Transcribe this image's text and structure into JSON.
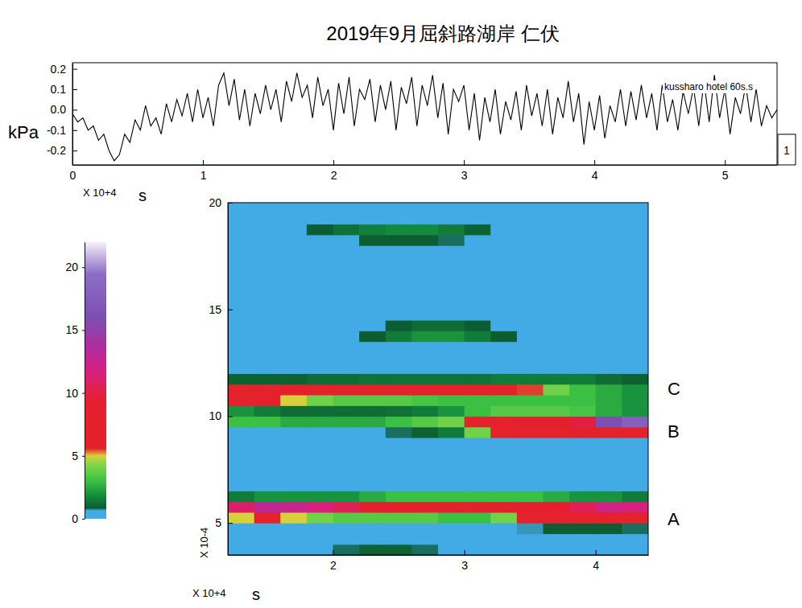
{
  "title": "2019年9月屈斜路湖岸 仁伏",
  "chart_data": [
    {
      "type": "line",
      "y_label": "kPa",
      "x_label": "s",
      "x_multiplier": "X 10+4",
      "annotations": [
        "kussharo hotel 60s.s",
        "1"
      ],
      "color": "#000000",
      "xlim": [
        0,
        5.4
      ],
      "xticks": [
        0,
        1,
        2,
        3,
        4,
        5
      ],
      "ylim": [
        -0.27,
        0.23
      ],
      "yticks": [
        0.2,
        0.1,
        {
          "value": 0,
          "label": "0.0"
        },
        -0.1,
        -0.2
      ],
      "x": [
        0,
        0.04,
        0.08,
        0.12,
        0.16,
        0.2,
        0.24,
        0.28,
        0.32,
        0.36,
        0.4,
        0.44,
        0.48,
        0.52,
        0.56,
        0.6,
        0.64,
        0.68,
        0.72,
        0.76,
        0.8,
        0.84,
        0.88,
        0.92,
        0.96,
        1,
        1.04,
        1.08,
        1.12,
        1.16,
        1.2,
        1.24,
        1.28,
        1.32,
        1.36,
        1.4,
        1.44,
        1.48,
        1.52,
        1.56,
        1.6,
        1.64,
        1.68,
        1.72,
        1.76,
        1.8,
        1.84,
        1.88,
        1.92,
        1.96,
        2,
        2.04,
        2.08,
        2.12,
        2.16,
        2.2,
        2.24,
        2.28,
        2.32,
        2.36,
        2.4,
        2.44,
        2.48,
        2.52,
        2.56,
        2.6,
        2.64,
        2.68,
        2.72,
        2.76,
        2.8,
        2.84,
        2.88,
        2.92,
        2.96,
        3,
        3.04,
        3.08,
        3.12,
        3.16,
        3.2,
        3.24,
        3.28,
        3.32,
        3.36,
        3.4,
        3.44,
        3.48,
        3.52,
        3.56,
        3.6,
        3.64,
        3.68,
        3.72,
        3.76,
        3.8,
        3.84,
        3.88,
        3.92,
        3.96,
        4,
        4.04,
        4.08,
        4.12,
        4.16,
        4.2,
        4.24,
        4.28,
        4.32,
        4.36,
        4.4,
        4.44,
        4.48,
        4.52,
        4.56,
        4.6,
        4.64,
        4.68,
        4.72,
        4.76,
        4.8,
        4.84,
        4.88,
        4.92,
        4.96,
        5,
        5.04,
        5.08,
        5.12,
        5.16,
        5.2,
        5.24,
        5.28,
        5.32,
        5.36,
        5.4
      ],
      "values": [
        -0.02,
        -0.06,
        -0.04,
        -0.1,
        -0.08,
        -0.15,
        -0.12,
        -0.2,
        -0.25,
        -0.22,
        -0.12,
        -0.16,
        -0.05,
        -0.1,
        0.02,
        -0.08,
        -0.04,
        -0.12,
        0.03,
        -0.06,
        0.05,
        -0.03,
        0.08,
        -0.06,
        0.1,
        -0.04,
        0.06,
        -0.08,
        0.12,
        0.18,
        0.02,
        0.15,
        -0.05,
        0.1,
        -0.08,
        0.08,
        -0.02,
        0.12,
        0.0,
        0.1,
        -0.06,
        0.14,
        0.04,
        0.18,
        0.06,
        0.12,
        -0.04,
        0.16,
        0.02,
        0.1,
        -0.1,
        0.13,
        -0.02,
        0.16,
        -0.08,
        0.1,
        0.05,
        0.15,
        -0.06,
        0.12,
        0.0,
        0.14,
        -0.1,
        0.11,
        0.03,
        0.16,
        -0.08,
        0.12,
        0.02,
        0.17,
        -0.04,
        0.13,
        -0.12,
        0.1,
        0.04,
        0.12,
        -0.1,
        0.08,
        -0.15,
        0.06,
        -0.06,
        0.1,
        -0.12,
        0.04,
        -0.05,
        0.09,
        -0.1,
        0.12,
        -0.03,
        0.08,
        -0.08,
        0.1,
        -0.12,
        0.06,
        -0.04,
        0.14,
        -0.06,
        0.08,
        -0.17,
        0.04,
        -0.1,
        0.07,
        -0.14,
        0.02,
        -0.06,
        0.1,
        -0.08,
        0.09,
        -0.05,
        0.12,
        -0.04,
        0.08,
        -0.1,
        0.12,
        -0.06,
        0.05,
        -0.1,
        0.09,
        -0.02,
        0.11,
        -0.08,
        0.14,
        -0.06,
        0.17,
        -0.04,
        0.1,
        -0.12,
        0.06,
        -0.02,
        0.12,
        -0.06,
        0.1,
        -0.08,
        0.02,
        -0.04,
        0.0
      ]
    },
    {
      "type": "heatmap",
      "x_label": "s",
      "x_multiplier": "X 10+4",
      "y_multiplier": "X 10-4",
      "xlim": [
        1.2,
        4.4
      ],
      "xticks": [
        2,
        3,
        4
      ],
      "ylim": [
        3.5,
        20
      ],
      "yticks": [
        5,
        10,
        15,
        20
      ],
      "colorbar_range": [
        0,
        22
      ],
      "colorbar_ticks": [
        0,
        5,
        10,
        15,
        20
      ],
      "annotations": [
        {
          "text": "C",
          "y": 11.3
        },
        {
          "text": "B",
          "y": 9.3
        },
        {
          "text": "A",
          "y": 5.2
        }
      ],
      "x": [
        1.3,
        1.5,
        1.7,
        1.9,
        2.1,
        2.3,
        2.5,
        2.7,
        2.9,
        3.1,
        3.3,
        3.5,
        3.7,
        3.9,
        4.1,
        4.3
      ],
      "y": [
        3.75,
        4.25,
        4.75,
        5.25,
        5.75,
        6.25,
        6.75,
        7.25,
        7.75,
        8.25,
        8.75,
        9.25,
        9.75,
        10.25,
        10.75,
        11.25,
        11.75,
        12.25,
        12.75,
        13.25,
        13.75,
        14.25,
        14.75,
        15.25,
        15.75,
        16.25,
        16.75,
        17.25,
        17.75,
        18.25,
        18.75,
        19.25,
        19.75
      ],
      "z": [
        [
          0.3,
          0.3,
          0.3,
          0.3,
          0.8,
          1.0,
          1.0,
          0.8,
          0.3,
          0.3,
          0.3,
          0.3,
          0.3,
          0.3,
          0.3,
          0.3
        ],
        [
          0.3,
          0.3,
          0.3,
          0.3,
          0.4,
          0.5,
          0.5,
          0.4,
          0.3,
          0.3,
          0.3,
          0.3,
          0.3,
          0.3,
          0.3,
          0.3
        ],
        [
          0.5,
          0.5,
          0.5,
          0.5,
          0.5,
          0.5,
          0.5,
          0.5,
          0.5,
          0.5,
          0.6,
          0.7,
          0.9,
          0.9,
          0.9,
          0.8
        ],
        [
          5,
          6,
          5,
          4,
          3.5,
          3.5,
          3.5,
          3.5,
          3,
          3,
          4,
          6,
          7,
          7.5,
          7,
          6
        ],
        [
          11,
          13,
          12.5,
          11.5,
          10.5,
          8,
          7,
          6.5,
          6,
          5.8,
          6.5,
          8,
          9,
          10.5,
          12,
          11.5
        ],
        [
          1.5,
          2,
          2,
          2,
          2,
          2.5,
          3,
          3,
          3,
          3,
          3,
          3,
          2.5,
          2,
          2,
          1.5
        ],
        [
          0.5,
          0.5,
          0.5,
          0.5,
          0.5,
          0.5,
          0.5,
          0.5,
          0.5,
          0.5,
          0.5,
          0.5,
          0.5,
          0.5,
          0.5,
          0.5
        ],
        [
          0.4,
          0.4,
          0.4,
          0.4,
          0.4,
          0.4,
          0.4,
          0.4,
          0.4,
          0.4,
          0.4,
          0.4,
          0.4,
          0.4,
          0.4,
          0.4
        ],
        [
          0.3,
          0.3,
          0.3,
          0.3,
          0.3,
          0.3,
          0.3,
          0.3,
          0.3,
          0.3,
          0.3,
          0.3,
          0.3,
          0.3,
          0.3,
          0.3
        ],
        [
          0.3,
          0.3,
          0.3,
          0.3,
          0.3,
          0.3,
          0.3,
          0.3,
          0.3,
          0.3,
          0.3,
          0.3,
          0.3,
          0.3,
          0.3,
          0.3
        ],
        [
          0.3,
          0.3,
          0.3,
          0.3,
          0.3,
          0.3,
          0.3,
          0.3,
          0.3,
          0.4,
          0.5,
          0.6,
          0.6,
          0.6,
          0.6,
          0.6
        ],
        [
          0.6,
          0.5,
          0.5,
          0.5,
          0.5,
          0.6,
          0.8,
          1.0,
          1.5,
          4,
          6,
          7,
          7,
          6.5,
          6,
          6
        ],
        [
          3,
          3,
          2.5,
          2.5,
          2.5,
          2.5,
          3,
          3.5,
          4,
          6,
          7,
          8,
          8.5,
          10,
          16,
          18
        ],
        [
          2,
          1.5,
          1.2,
          1.2,
          1.2,
          1.2,
          1.3,
          1.5,
          2,
          3,
          3.5,
          3.5,
          3.5,
          3.2,
          2.5,
          2
        ],
        [
          7,
          6,
          5,
          4,
          3.5,
          3.5,
          3.5,
          3.2,
          3,
          3,
          3,
          3,
          3,
          3,
          2.5,
          2
        ],
        [
          6,
          7,
          6.5,
          6,
          6,
          6,
          6,
          6,
          6,
          6,
          6,
          5.5,
          4,
          3,
          2.5,
          2
        ],
        [
          1,
          1,
          1,
          1.2,
          1.2,
          1.3,
          1.3,
          1.3,
          1.3,
          1.3,
          1.5,
          1.5,
          1.5,
          1.5,
          1.2,
          1
        ],
        [
          0.4,
          0.4,
          0.4,
          0.4,
          0.4,
          0.4,
          0.4,
          0.4,
          0.4,
          0.4,
          0.4,
          0.4,
          0.4,
          0.4,
          0.4,
          0.4
        ],
        [
          0.3,
          0.3,
          0.3,
          0.3,
          0.3,
          0.3,
          0.3,
          0.3,
          0.3,
          0.3,
          0.3,
          0.3,
          0.3,
          0.3,
          0.3,
          0.3
        ],
        [
          0.3,
          0.3,
          0.3,
          0.3,
          0.3,
          0.4,
          0.5,
          0.5,
          0.5,
          0.4,
          0.3,
          0.3,
          0.3,
          0.3,
          0.3,
          0.3
        ],
        [
          0.4,
          0.4,
          0.4,
          0.4,
          0.5,
          0.9,
          1.5,
          2,
          2,
          1.5,
          0.9,
          0.5,
          0.4,
          0.4,
          0.4,
          0.4
        ],
        [
          0.5,
          0.6,
          0.6,
          0.5,
          0.5,
          0.6,
          0.9,
          1.2,
          1.2,
          0.9,
          0.5,
          0.4,
          0.4,
          0.4,
          0.4,
          0.4
        ],
        [
          0.4,
          0.5,
          0.5,
          0.4,
          0.4,
          0.4,
          0.4,
          0.4,
          0.4,
          0.4,
          0.4,
          0.4,
          0.4,
          0.4,
          0.4,
          0.4
        ],
        [
          0.3,
          0.3,
          0.3,
          0.3,
          0.3,
          0.3,
          0.3,
          0.3,
          0.3,
          0.3,
          0.3,
          0.3,
          0.3,
          0.3,
          0.3,
          0.3
        ],
        [
          0.3,
          0.3,
          0.3,
          0.3,
          0.3,
          0.3,
          0.3,
          0.3,
          0.3,
          0.3,
          0.3,
          0.3,
          0.3,
          0.3,
          0.3,
          0.3
        ],
        [
          0.3,
          0.3,
          0.3,
          0.3,
          0.3,
          0.3,
          0.3,
          0.3,
          0.3,
          0.3,
          0.3,
          0.3,
          0.3,
          0.3,
          0.3,
          0.3
        ],
        [
          0.3,
          0.3,
          0.3,
          0.3,
          0.3,
          0.3,
          0.3,
          0.3,
          0.3,
          0.3,
          0.3,
          0.3,
          0.3,
          0.3,
          0.3,
          0.3
        ],
        [
          0.3,
          0.3,
          0.3,
          0.3,
          0.3,
          0.3,
          0.3,
          0.3,
          0.3,
          0.3,
          0.3,
          0.3,
          0.3,
          0.3,
          0.3,
          0.3
        ],
        [
          0.3,
          0.3,
          0.3,
          0.3,
          0.3,
          0.3,
          0.3,
          0.3,
          0.3,
          0.3,
          0.3,
          0.3,
          0.3,
          0.3,
          0.3,
          0.3
        ],
        [
          0.3,
          0.3,
          0.3,
          0.4,
          0.6,
          0.9,
          0.9,
          0.9,
          0.8,
          0.5,
          0.3,
          0.3,
          0.3,
          0.3,
          0.3,
          0.3
        ],
        [
          0.3,
          0.4,
          0.6,
          0.9,
          1.3,
          1.6,
          1.8,
          1.8,
          1.5,
          1.0,
          0.5,
          0.3,
          0.3,
          0.3,
          0.3,
          0.3
        ],
        [
          0.3,
          0.3,
          0.3,
          0.3,
          0.4,
          0.5,
          0.5,
          0.5,
          0.4,
          0.3,
          0.3,
          0.3,
          0.3,
          0.3,
          0.3,
          0.3
        ],
        [
          0.3,
          0.3,
          0.3,
          0.3,
          0.3,
          0.3,
          0.3,
          0.3,
          0.3,
          0.3,
          0.3,
          0.3,
          0.3,
          0.3,
          0.3,
          0.3
        ]
      ]
    }
  ]
}
